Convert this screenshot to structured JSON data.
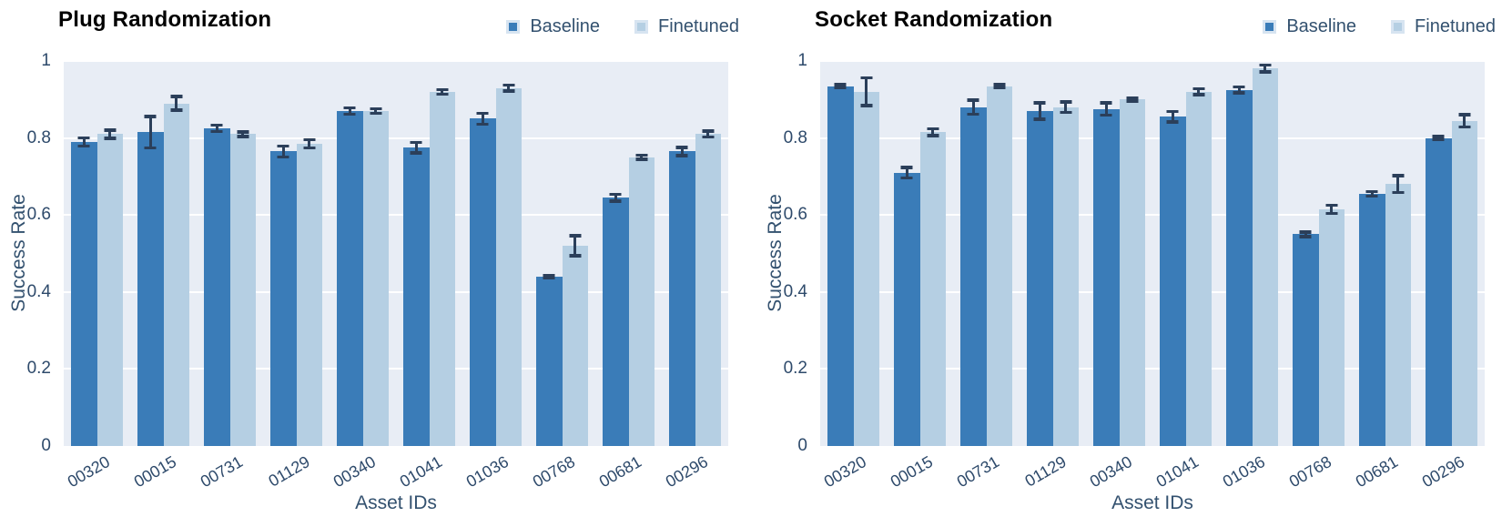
{
  "colors": {
    "baseline": "#3a7cb8",
    "finetuned": "#b5cfe3",
    "plot_background": "#e8edf5",
    "error_bar": "#2b3f5a",
    "axis_text": "#2e4a6b",
    "label_text": "#33516f",
    "title_text": "#000000",
    "gridline": "#ffffff"
  },
  "chart_data": [
    {
      "type": "bar",
      "title": "Plug Randomization",
      "xlabel": "Asset IDs",
      "ylabel": "Success Rate",
      "ylim": [
        0,
        1
      ],
      "yticks": [
        0,
        0.2,
        0.4,
        0.6,
        0.8,
        1
      ],
      "ytick_labels": [
        "0",
        "0.2",
        "0.4",
        "0.6",
        "0.8",
        "1"
      ],
      "grid": true,
      "legend_position": "top-right",
      "categories": [
        "00320",
        "00015",
        "00731",
        "01129",
        "00340",
        "01041",
        "01036",
        "00768",
        "00681",
        "00296"
      ],
      "series": [
        {
          "name": "Baseline",
          "values": [
            0.79,
            0.815,
            0.825,
            0.765,
            0.87,
            0.775,
            0.85,
            0.44,
            0.645,
            0.765
          ],
          "errors": [
            0.015,
            0.045,
            0.012,
            0.018,
            0.012,
            0.018,
            0.018,
            0.008,
            0.013,
            0.015
          ]
        },
        {
          "name": "Finetuned",
          "values": [
            0.81,
            0.89,
            0.81,
            0.785,
            0.87,
            0.92,
            0.93,
            0.52,
            0.75,
            0.81
          ],
          "errors": [
            0.015,
            0.022,
            0.01,
            0.015,
            0.01,
            0.01,
            0.012,
            0.03,
            0.01,
            0.012
          ]
        }
      ]
    },
    {
      "type": "bar",
      "title": "Socket Randomization",
      "xlabel": "Asset IDs",
      "ylabel": "Success Rate",
      "ylim": [
        0,
        1
      ],
      "yticks": [
        0,
        0.2,
        0.4,
        0.6,
        0.8,
        1
      ],
      "ytick_labels": [
        "0",
        "0.2",
        "0.4",
        "0.6",
        "0.8",
        "1"
      ],
      "grid": true,
      "legend_position": "top-right",
      "categories": [
        "00320",
        "00015",
        "00731",
        "01129",
        "00340",
        "01041",
        "01036",
        "00768",
        "00681",
        "00296"
      ],
      "series": [
        {
          "name": "Baseline",
          "values": [
            0.935,
            0.71,
            0.88,
            0.87,
            0.875,
            0.855,
            0.925,
            0.55,
            0.655,
            0.8
          ],
          "errors": [
            0.008,
            0.018,
            0.022,
            0.025,
            0.02,
            0.018,
            0.012,
            0.01,
            0.01,
            0.008
          ]
        },
        {
          "name": "Finetuned",
          "values": [
            0.92,
            0.815,
            0.935,
            0.88,
            0.9,
            0.92,
            0.98,
            0.615,
            0.68,
            0.845
          ],
          "errors": [
            0.04,
            0.013,
            0.008,
            0.018,
            0.008,
            0.012,
            0.013,
            0.015,
            0.026,
            0.02
          ]
        }
      ]
    }
  ]
}
